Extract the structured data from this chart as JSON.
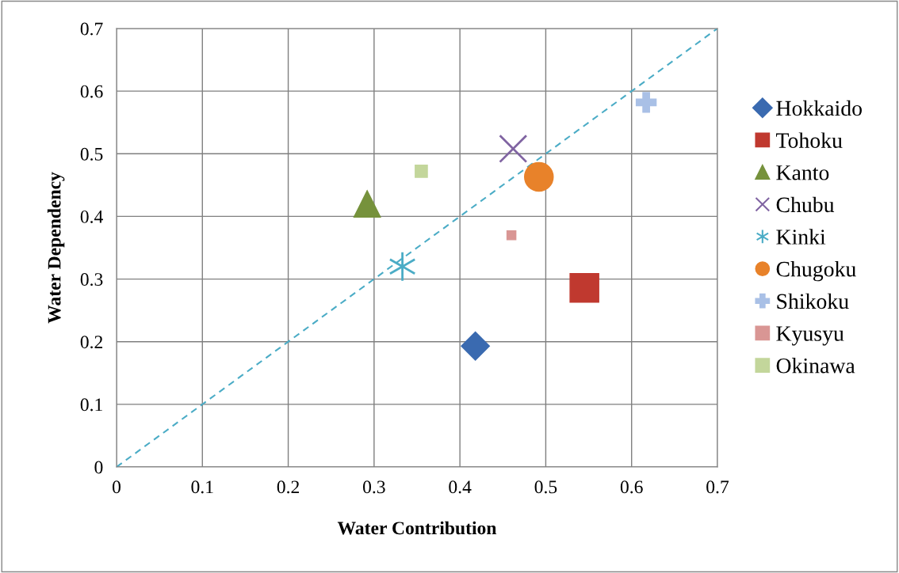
{
  "chart_data": {
    "type": "scatter",
    "xlabel": "Water Contribution",
    "ylabel": "Water Dependency",
    "xlim": [
      0,
      0.7
    ],
    "ylim": [
      0,
      0.7
    ],
    "xticks": [
      0,
      0.1,
      0.2,
      0.3,
      0.4,
      0.5,
      0.6,
      0.7
    ],
    "yticks": [
      0,
      0.1,
      0.2,
      0.3,
      0.4,
      0.5,
      0.6,
      0.7
    ],
    "grid": true,
    "legend": "right",
    "series": [
      {
        "name": "Hokkaido",
        "color": "#3a6ab0",
        "marker": "diamond",
        "x": [
          0.418
        ],
        "values": [
          0.193
        ]
      },
      {
        "name": "Tohoku",
        "color": "#c0392f",
        "marker": "square",
        "x": [
          0.545
        ],
        "values": [
          0.286
        ]
      },
      {
        "name": "Kanto",
        "color": "#76923c",
        "marker": "triangle",
        "x": [
          0.292
        ],
        "values": [
          0.42
        ]
      },
      {
        "name": "Chubu",
        "color": "#8064a2",
        "marker": "cross",
        "x": [
          0.462
        ],
        "values": [
          0.508
        ]
      },
      {
        "name": "Kinki",
        "color": "#4bacc6",
        "marker": "cross",
        "x": [
          0.333
        ],
        "values": [
          0.32
        ]
      },
      {
        "name": "Chugoku",
        "color": "#e8822a",
        "marker": "circle",
        "x": [
          0.492
        ],
        "values": [
          0.463
        ]
      },
      {
        "name": "Shikoku",
        "color": "#a9c0e6",
        "marker": "cross",
        "x": [
          0.617
        ],
        "values": [
          0.582
        ]
      },
      {
        "name": "Kyusyu",
        "color": "#d99694",
        "marker": "square",
        "x": [
          0.46
        ],
        "values": [
          0.37
        ]
      },
      {
        "name": "Okinawa",
        "color": "#c3d69b",
        "marker": "square",
        "x": [
          0.355
        ],
        "values": [
          0.472
        ]
      },
      {
        "type": "line",
        "color": "#4bacc6",
        "line_style": "dashed",
        "marker": "none",
        "x": [
          0,
          0.7
        ],
        "values": [
          0,
          0.7
        ]
      }
    ]
  }
}
